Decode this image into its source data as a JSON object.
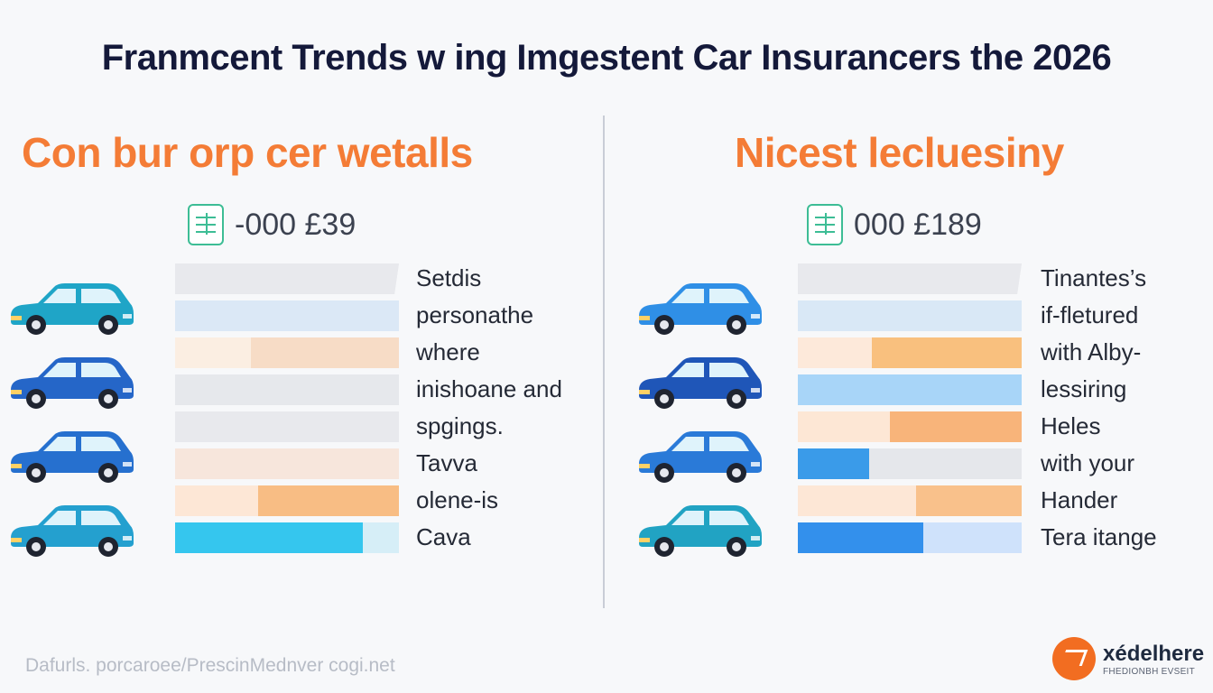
{
  "title": "Franmcent Trends w ing Imgestent Car Insurancers the 2026",
  "left_panel": {
    "heading": "Con bur orp cer wetalls",
    "price": "-000 £39",
    "price_icon": "calculator-icon",
    "cars": [
      {
        "color": "#1fa5c7"
      },
      {
        "color": "#2566c8"
      },
      {
        "color": "#2670cf"
      },
      {
        "color": "#24a0cf"
      }
    ],
    "bars": [
      {
        "track": "#e8e9ed",
        "fill": "#e8e9ed",
        "fill_start": 0.0,
        "fill_end": 1.0
      },
      {
        "track": "#dbe8f6",
        "fill": "#dbe8f6",
        "fill_start": 0.0,
        "fill_end": 1.0
      },
      {
        "track": "#fbeee2",
        "fill": "#f7dcc6",
        "fill_start": 0.34,
        "fill_end": 1.0
      },
      {
        "track": "#e6e8ec",
        "fill": "#e6e8ec",
        "fill_start": 0.0,
        "fill_end": 1.0
      },
      {
        "track": "#e8e9ed",
        "fill": "#e8e9ed",
        "fill_start": 0.0,
        "fill_end": 1.0
      },
      {
        "track": "#f7e6dc",
        "fill": "#f7e6dc",
        "fill_start": 0.0,
        "fill_end": 1.0
      },
      {
        "track": "#fde7d6",
        "fill": "#f8bd84",
        "fill_start": 0.37,
        "fill_end": 1.0
      },
      {
        "track": "#d6eef7",
        "fill": "#35c6ee",
        "fill_start": 0.0,
        "fill_end": 0.84
      }
    ],
    "lines": [
      "Setdis",
      "personathe",
      "where",
      "inishoane and",
      "spgings.",
      "Tavva",
      "olene-is",
      "Cava"
    ]
  },
  "right_panel": {
    "heading": "Nicest lecluesiny",
    "price": "000 £189",
    "price_icon": "calculator-icon",
    "cars": [
      {
        "color": "#2f8fe6"
      },
      {
        "color": "#1f56b8"
      },
      {
        "color": "#2a7ad8"
      },
      {
        "color": "#21a3c3"
      }
    ],
    "bars": [
      {
        "track": "#e8e9ed",
        "fill": "#e8e9ed",
        "fill_start": 0.0,
        "fill_end": 1.0
      },
      {
        "track": "#d9e8f6",
        "fill": "#d9e8f6",
        "fill_start": 0.0,
        "fill_end": 1.0
      },
      {
        "track": "#fde9da",
        "fill": "#f9c07e",
        "fill_start": 0.33,
        "fill_end": 1.0
      },
      {
        "track": "#a8d5f8",
        "fill": "#a8d5f8",
        "fill_start": 0.0,
        "fill_end": 1.0
      },
      {
        "track": "#fde7d5",
        "fill": "#f8b47a",
        "fill_start": 0.41,
        "fill_end": 1.0
      },
      {
        "track": "#e5e7eb",
        "fill": "#3a9be9",
        "fill_start": 0.0,
        "fill_end": 0.32
      },
      {
        "track": "#fde7d6",
        "fill": "#f9c18b",
        "fill_start": 0.53,
        "fill_end": 1.0
      },
      {
        "track": "#cfe2fb",
        "fill": "#3390ec",
        "fill_start": 0.0,
        "fill_end": 0.56
      }
    ],
    "lines": [
      "Tinantes’s",
      "if-fletured",
      "with Alby-",
      "lessiring",
      "Heles",
      "with your",
      "Hander",
      "Tera itange"
    ]
  },
  "footer": {
    "source": "Dafurls. porcaroee/PrescinMednver cogi.net",
    "brand_name": "xédelhere",
    "brand_tagline": "FHEDIONBH EVSEIT",
    "brand_color": "#f26d21"
  }
}
